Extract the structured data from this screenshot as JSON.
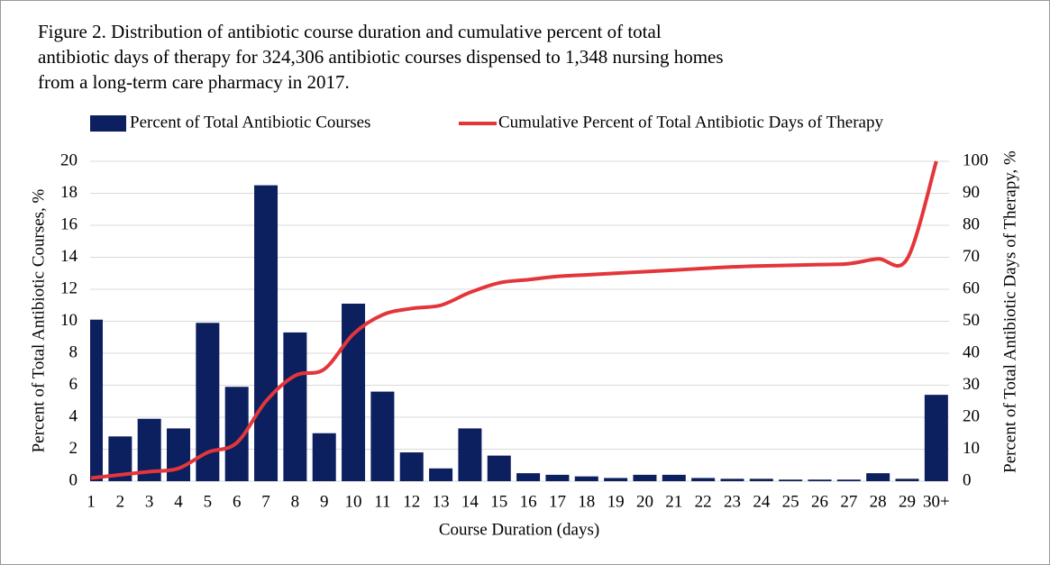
{
  "chart_data": {
    "type": "bar-line",
    "title": [
      "Figure 2. Distribution of antibiotic course duration and cumulative percent of total",
      "antibiotic days of therapy for 324,306  antibiotic courses dispensed to 1,348  nursing homes",
      "from a long-term care pharmacy in 2017."
    ],
    "x_label": "Course Duration (days)",
    "y_label": "Percent of Total Antibiotic Courses, %",
    "y2_label": "Percent of Total Antibiotic Days of Therapy, %",
    "categories": [
      "1",
      "2",
      "3",
      "4",
      "5",
      "6",
      "7",
      "8",
      "9",
      "10",
      "11",
      "12",
      "13",
      "14",
      "15",
      "16",
      "17",
      "18",
      "19",
      "20",
      "21",
      "22",
      "23",
      "24",
      "25",
      "26",
      "27",
      "28",
      "29",
      "30+"
    ],
    "series": [
      {
        "name": "Percent of Total Antibiotic Courses",
        "type": "bar",
        "color": "#0c1f5e",
        "values": [
          10.1,
          2.8,
          3.9,
          3.3,
          9.9,
          5.9,
          18.5,
          9.3,
          3.0,
          11.1,
          5.6,
          1.8,
          0.8,
          3.3,
          1.6,
          0.5,
          0.4,
          0.3,
          0.2,
          0.4,
          0.4,
          0.2,
          0.15,
          0.15,
          0.1,
          0.1,
          0.1,
          0.5,
          0.15,
          5.4
        ]
      },
      {
        "name": "Cumulative Percent of Total Antibiotic Days of Therapy",
        "type": "line",
        "axis": "y2",
        "color": "#e3363a",
        "values": [
          1,
          2,
          3,
          4,
          9,
          12,
          25,
          33,
          35,
          46,
          52,
          54,
          55,
          59,
          62,
          63,
          64,
          64.5,
          65,
          65.5,
          66,
          66.5,
          67,
          67.3,
          67.5,
          67.7,
          68,
          69.5,
          69.5,
          100
        ]
      }
    ],
    "ylim": [
      0,
      20
    ],
    "yticks": [
      0,
      2,
      4,
      6,
      8,
      10,
      12,
      14,
      16,
      18,
      20
    ],
    "y2lim": [
      0,
      100
    ],
    "y2ticks": [
      0,
      10,
      20,
      30,
      40,
      50,
      60,
      70,
      80,
      90,
      100
    ],
    "grid": true,
    "legend": "top"
  }
}
